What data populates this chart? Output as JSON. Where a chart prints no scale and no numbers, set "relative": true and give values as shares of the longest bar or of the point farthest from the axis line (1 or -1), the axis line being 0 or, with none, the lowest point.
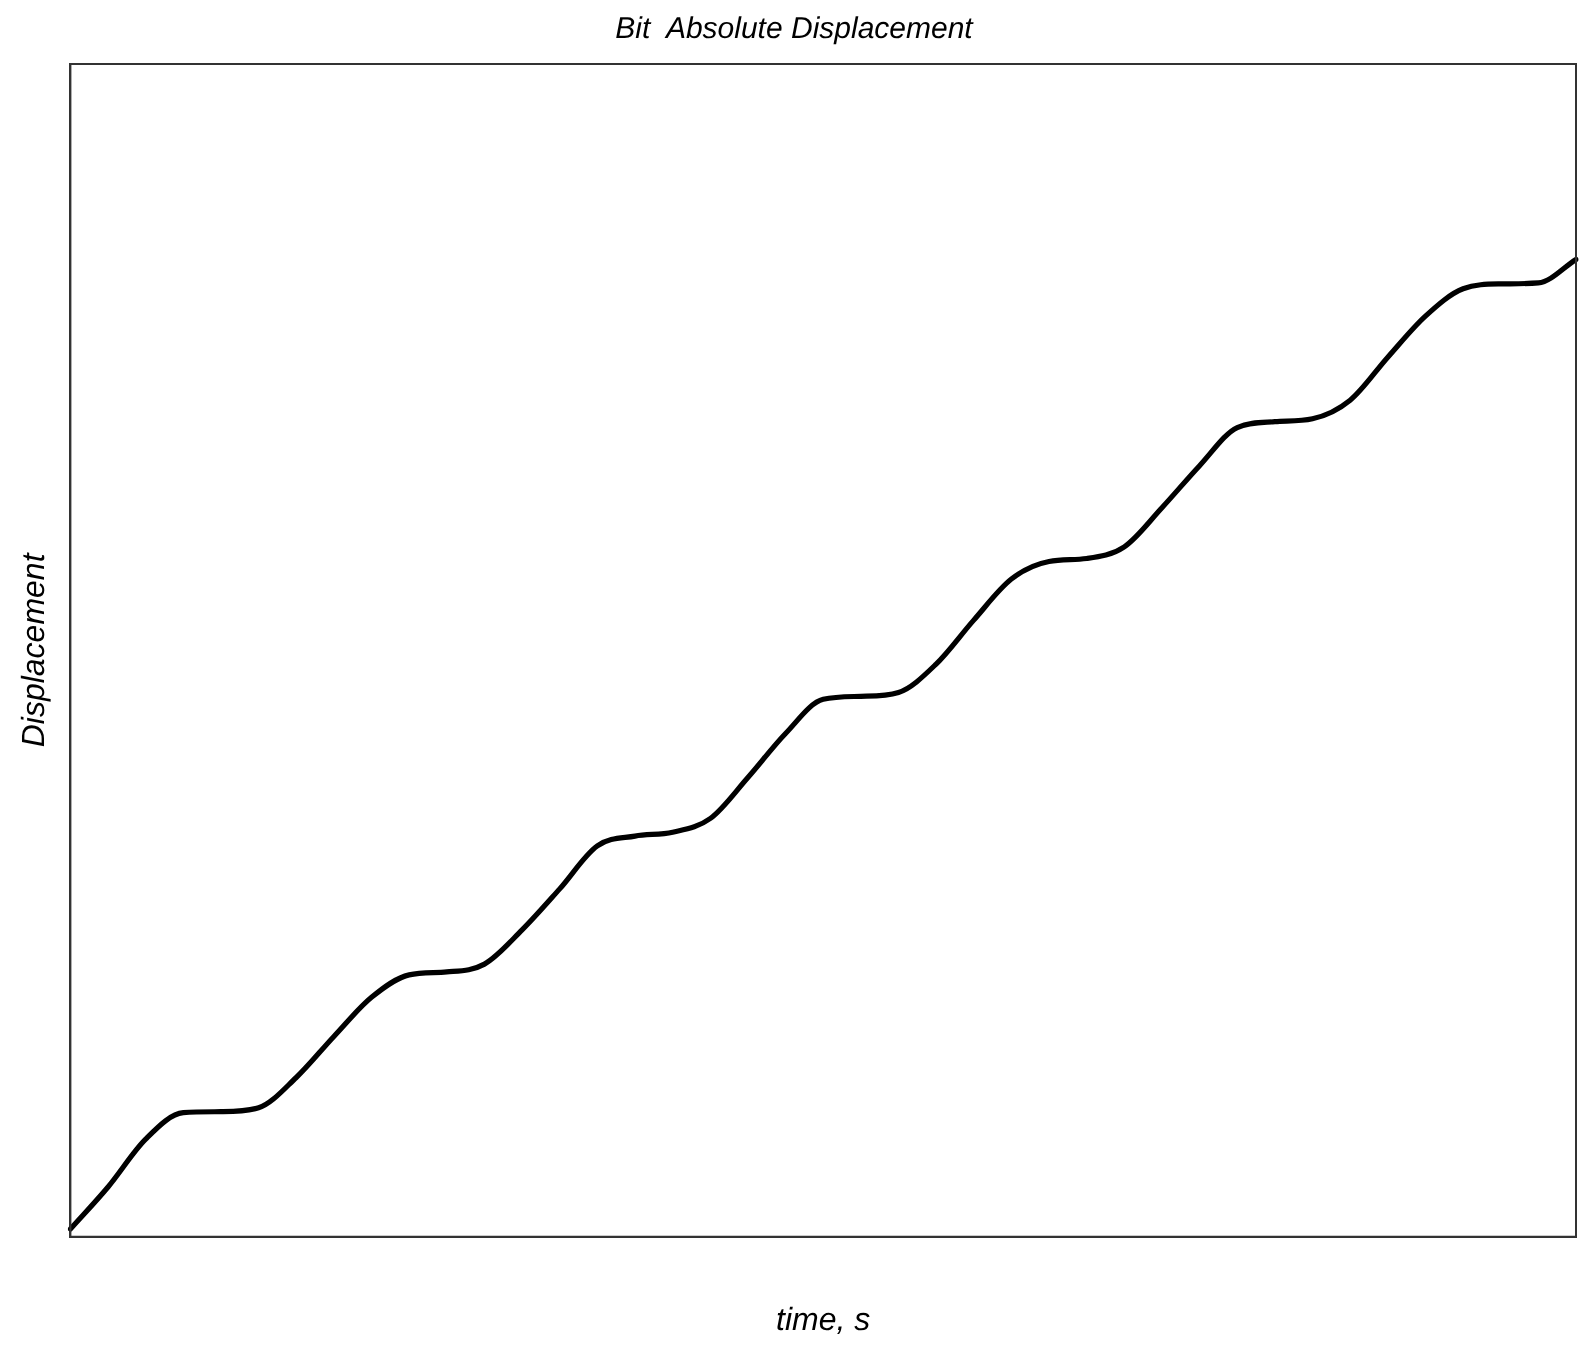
{
  "chart_data": {
    "type": "line",
    "title": "Bit  Absolute Displacement",
    "xlabel": "time, s",
    "ylabel": "Displacement",
    "relative": true,
    "color": "#000000",
    "marker": "none",
    "line_style": "solid",
    "grid": false,
    "legend": false,
    "categories": [
      null,
      null,
      null,
      null,
      null,
      null,
      null,
      null,
      null,
      null,
      null,
      null,
      null,
      null,
      null,
      null,
      null,
      null,
      null,
      null,
      null,
      null,
      null,
      null,
      null,
      null,
      null,
      null,
      null,
      null,
      null,
      null,
      null,
      null,
      null,
      null,
      null,
      null,
      null,
      null,
      null
    ],
    "values": [
      0.008,
      0.051,
      0.1,
      0.127,
      0.128,
      0.132,
      0.163,
      0.205,
      0.245,
      0.268,
      0.271,
      0.279,
      0.314,
      0.356,
      0.4,
      0.41,
      0.414,
      0.428,
      0.47,
      0.515,
      0.55,
      0.553,
      0.557,
      0.586,
      0.631,
      0.673,
      0.691,
      0.694,
      0.706,
      0.746,
      0.789,
      0.828,
      0.834,
      0.837,
      0.856,
      0.9,
      0.942,
      0.97,
      0.975,
      0.976,
      1
    ]
  }
}
